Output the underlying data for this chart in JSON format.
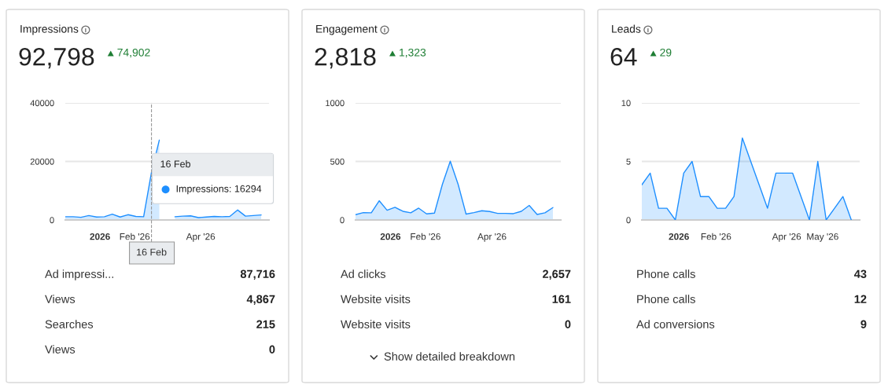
{
  "chart_data": [
    {
      "type": "area",
      "title": "Impressions",
      "subtitle": "92,798",
      "color": "#1e8fff",
      "x": [
        "2025-12-01",
        "2025-12-08",
        "2025-12-15",
        "2025-12-22",
        "2025-12-29",
        "2026-01-05",
        "2026-01-12",
        "2026-01-19",
        "2026-01-26",
        "2026-02-02",
        "2026-02-09",
        "2026-02-16",
        "2026-02-23",
        "2026-03-02",
        "2026-03-09",
        "2026-03-16",
        "2026-03-23",
        "2026-03-30",
        "2026-04-06",
        "2026-04-13",
        "2026-04-20",
        "2026-04-27",
        "2026-05-04",
        "2026-05-11",
        "2026-05-18",
        "2026-05-25"
      ],
      "values": [
        1100,
        1100,
        900,
        1500,
        1000,
        1100,
        2000,
        1000,
        1800,
        1200,
        1100,
        16294,
        27300,
        null,
        1100,
        1300,
        1400,
        800,
        1000,
        1200,
        1100,
        1200,
        3400,
        1300,
        1500,
        1700
      ],
      "xlim": [
        "2025-12-01",
        "2026-06-01"
      ],
      "ylim": [
        0,
        40000
      ],
      "yticks": [
        0,
        20000,
        40000
      ],
      "xticks": [
        {
          "value": "2026-01-01",
          "label": "2026"
        },
        {
          "value": "2026-02-01",
          "label": "Feb '26"
        },
        {
          "value": "2026-04-01",
          "label": "Apr '26"
        }
      ],
      "grid": "y",
      "ref_lines": [
        {
          "axis": "x",
          "value": "2026-02-16",
          "label": "16 Feb",
          "color": "#999999",
          "line_style": "dashed"
        }
      ],
      "annotations": [
        "74,902",
        "Ad impressi...",
        "87,716",
        "Views",
        "4,867",
        "Searches",
        "215",
        "Views",
        "0",
        {
          "text": "16 Feb",
          "x": "2026-02-16",
          "y": 16294
        },
        {
          "text": "Impressions: 16294",
          "x": "2026-02-16",
          "y": 16294
        }
      ]
    },
    {
      "type": "area",
      "title": "Engagement",
      "subtitle": "2,818",
      "color": "#1e8fff",
      "x": [
        "2025-12-01",
        "2025-12-08",
        "2025-12-15",
        "2025-12-22",
        "2025-12-29",
        "2026-01-05",
        "2026-01-12",
        "2026-01-19",
        "2026-01-26",
        "2026-02-02",
        "2026-02-09",
        "2026-02-16",
        "2026-02-23",
        "2026-03-02",
        "2026-03-09",
        "2026-03-16",
        "2026-03-23",
        "2026-03-30",
        "2026-04-06",
        "2026-04-13",
        "2026-04-20",
        "2026-04-27",
        "2026-05-04",
        "2026-05-11",
        "2026-05-18",
        "2026-05-25"
      ],
      "values": [
        45,
        63,
        61,
        164,
        83,
        108,
        74,
        61,
        101,
        52,
        59,
        304,
        502,
        304,
        50,
        63,
        79,
        72,
        56,
        56,
        54,
        74,
        124,
        47,
        61,
        106
      ],
      "xlim": [
        "2025-12-01",
        "2026-06-01"
      ],
      "ylim": [
        0,
        1000
      ],
      "yticks": [
        0,
        500,
        1000
      ],
      "xticks": [
        {
          "value": "2026-01-01",
          "label": "2026"
        },
        {
          "value": "2026-02-01",
          "label": "Feb '26"
        },
        {
          "value": "2026-04-01",
          "label": "Apr '26"
        }
      ],
      "grid": "y",
      "annotations": [
        "1,323",
        "Ad clicks",
        "2,657",
        "Website visits",
        "161",
        "Website visits",
        "0",
        "Show detailed breakdown"
      ]
    },
    {
      "type": "area",
      "title": "Leads",
      "subtitle": "64",
      "color": "#1e8fff",
      "x": [
        "2025-12-01",
        "2025-12-08",
        "2025-12-15",
        "2025-12-22",
        "2025-12-29",
        "2026-01-05",
        "2026-01-12",
        "2026-01-19",
        "2026-01-26",
        "2026-02-02",
        "2026-02-09",
        "2026-02-16",
        "2026-02-23",
        "2026-03-02",
        "2026-03-09",
        "2026-03-16",
        "2026-03-23",
        "2026-03-30",
        "2026-04-06",
        "2026-04-13",
        "2026-04-20",
        "2026-04-27",
        "2026-05-04",
        "2026-05-11",
        "2026-05-18",
        "2026-05-25"
      ],
      "values": [
        3,
        4,
        1,
        1,
        0,
        4,
        5,
        2,
        2,
        1,
        1,
        2,
        7,
        5,
        3,
        1,
        4,
        4,
        4,
        2,
        0,
        5,
        0,
        1,
        2,
        0
      ],
      "xlim": [
        "2025-12-01",
        "2026-06-01"
      ],
      "ylim": [
        0,
        10
      ],
      "yticks": [
        0,
        5,
        10
      ],
      "xticks": [
        {
          "value": "2026-01-01",
          "label": "2026"
        },
        {
          "value": "2026-02-01",
          "label": "Feb '26"
        },
        {
          "value": "2026-04-01",
          "label": "Apr '26"
        },
        {
          "value": "2026-05-01",
          "label": "May '26"
        }
      ],
      "grid": "y",
      "annotations": [
        "29",
        "Phone calls",
        "43",
        "Phone calls",
        "12",
        "Ad conversions",
        "9"
      ]
    }
  ]
}
